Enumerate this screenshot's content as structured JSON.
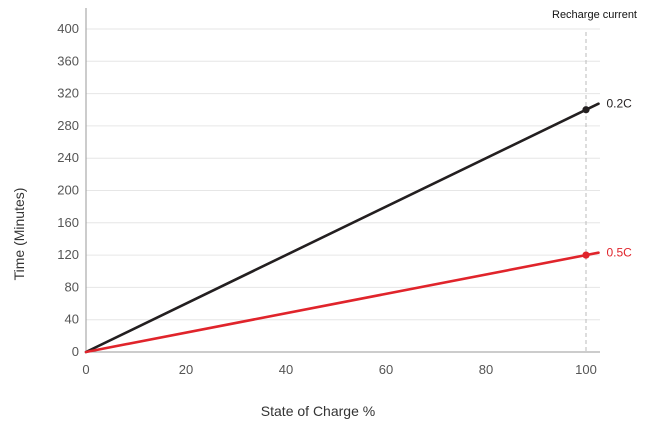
{
  "chart_data": {
    "type": "line",
    "xlabel": "State of Charge %",
    "ylabel": "Time (Minutes)",
    "legend_title": "Recharge current",
    "legend_placement": "top-right",
    "grid": true,
    "xlim": [
      0,
      102
    ],
    "ylim": [
      0,
      410
    ],
    "x_ticks": [
      "0",
      "20",
      "40",
      "60",
      "80",
      "100"
    ],
    "y_ticks": [
      "0",
      "40",
      "80",
      "120",
      "160",
      "200",
      "240",
      "280",
      "320",
      "360",
      "400"
    ],
    "x": [
      0,
      100
    ],
    "reference_x": 100,
    "series": [
      {
        "name": "0.2C",
        "color": "#231f20",
        "values": [
          0,
          300
        ],
        "extend_to_x": 102.5
      },
      {
        "name": "0.5C",
        "color": "#e0242b",
        "values": [
          0,
          120
        ],
        "extend_to_x": 102.5
      }
    ]
  }
}
